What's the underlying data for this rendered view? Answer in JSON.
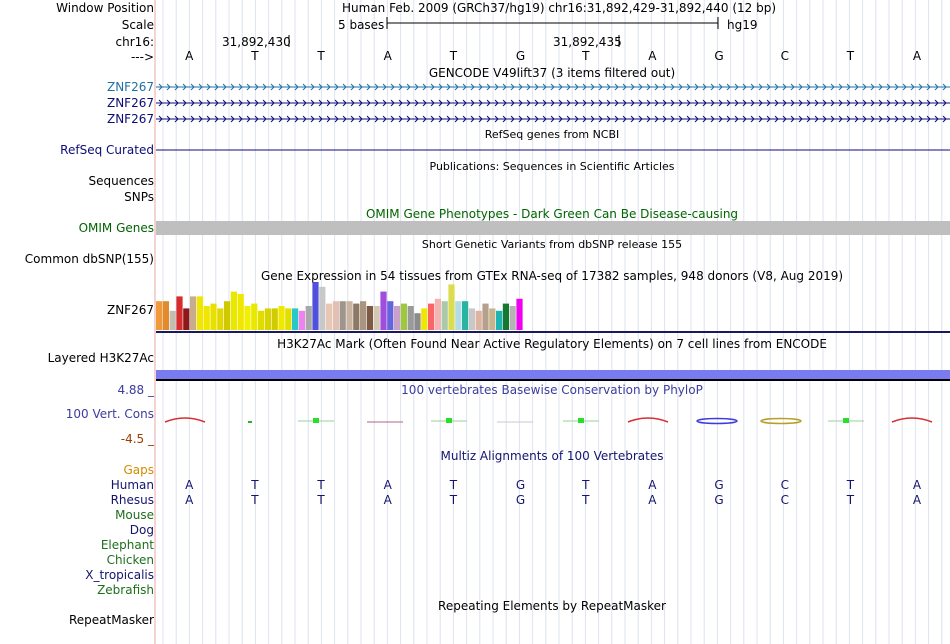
{
  "header": {
    "window_position_label": "Window Position",
    "scale_label": "Scale",
    "chrom_label": "chr16:",
    "strand_label": "--->",
    "assembly_text": "Human Feb. 2009 (GRCh37/hg19)   chr16:31,892,429-31,892,440 (12 bp)",
    "scale_text": "5 bases",
    "scale_db": "hg19",
    "coord_1": "31,892,430",
    "coord_2": "31,892,435",
    "bases": [
      "A",
      "T",
      "T",
      "A",
      "T",
      "G",
      "T",
      "A",
      "G",
      "C",
      "T",
      "A"
    ]
  },
  "tracks": {
    "gencode_title": "GENCODE V49lift37 (3 items filtered out)",
    "gencode_items": [
      "ZNF267",
      "ZNF267",
      "ZNF267"
    ],
    "refseq_title": "RefSeq genes from NCBI",
    "refseq_label": "RefSeq Curated",
    "pubs_title": "Publications: Sequences in Scientific Articles",
    "pubs_label_1": "Sequences",
    "pubs_label_2": "SNPs",
    "omim_title": "OMIM Gene Phenotypes - Dark Green Can Be Disease-causing",
    "omim_label": "OMIM Genes",
    "dbsnp_title": "Short Genetic Variants from dbSNP release 155",
    "dbsnp_label": "Common dbSNP(155)",
    "gtex_title": "Gene Expression in 54 tissues from GTEx RNA-seq of 17382 samples, 948 donors (V8, Aug 2019)",
    "gtex_label": "ZNF267",
    "h3k27_title": "H3K27Ac Mark (Often Found Near Active Regulatory Elements) on 7 cell lines from ENCODE",
    "h3k27_label": "Layered H3K27Ac",
    "phylop_title": "100 vertebrates Basewise Conservation by PhyloP",
    "phylop_max": "4.88 _",
    "phylop_label": "100 Vert. Cons",
    "phylop_min": "-4.5 _",
    "multiz_title": "Multiz Alignments of 100 Vertebrates",
    "multiz_gaps": "Gaps",
    "multiz_species": [
      "Human",
      "Rhesus",
      "Mouse",
      "Dog",
      "Elephant",
      "Chicken",
      "X_tropicalis",
      "Zebrafish"
    ],
    "human_seq": [
      "A",
      "T",
      "T",
      "A",
      "T",
      "G",
      "T",
      "A",
      "G",
      "C",
      "T",
      "A"
    ],
    "rhesus_seq": [
      "A",
      "T",
      "T",
      "A",
      "T",
      "G",
      "T",
      "A",
      "G",
      "C",
      "T",
      "A"
    ],
    "rmsk_title": "Repeating Elements by RepeatMasker",
    "rmsk_label": "RepeatMasker"
  },
  "colors": {
    "gencode_blue": "#1f6fa8",
    "gencode_dark": "#0c0c78",
    "refseq": "#0c0c78",
    "omim_green": "#006400",
    "omim_bar": "#bfbfbf",
    "phylop_blue": "#3c3ca0",
    "phylop_neg": "#a03c00",
    "gaps": "#d68a00",
    "species_navy": "#14146e",
    "species_green": "#1e6e1e",
    "h3k27": "#7b7bf0"
  },
  "chart_data": {
    "type": "bar",
    "title": "Gene Expression in 54 tissues from GTEx RNA-seq of 17382 samples, 948 donors (V8, Aug 2019)",
    "ylabel": "",
    "ylim": [
      0,
      1
    ],
    "values": [
      0.6,
      0.6,
      0.4,
      0.7,
      0.45,
      0.7,
      0.7,
      0.5,
      0.55,
      0.45,
      0.6,
      0.8,
      0.75,
      0.5,
      0.55,
      0.4,
      0.45,
      0.45,
      0.5,
      0.45,
      0.45,
      0.4,
      0.5,
      1.0,
      0.9,
      0.55,
      0.6,
      0.6,
      0.6,
      0.55,
      0.6,
      0.5,
      0.5,
      0.8,
      0.6,
      0.5,
      0.55,
      0.5,
      0.35,
      0.45,
      0.55,
      0.65,
      0.6,
      0.95,
      0.6,
      0.6,
      0.45,
      0.4,
      0.55,
      0.45,
      0.4,
      0.55,
      0.5,
      0.65
    ],
    "colors": [
      "#f09a3c",
      "#e38a2a",
      "#c4bdb0",
      "#d62c2c",
      "#8c1818",
      "#c8ad8c",
      "#f0e600",
      "#f0e600",
      "#e8e000",
      "#e0d800",
      "#d0c800",
      "#e8e800",
      "#f0e600",
      "#f0f000",
      "#e8e800",
      "#e0dc00",
      "#d8d400",
      "#d0cc00",
      "#f0e800",
      "#e0e000",
      "#28c8c8",
      "#ee82ee",
      "#a8a8a8",
      "#5050dc",
      "#c8c8c8",
      "#e6c8b4",
      "#e2c0b4",
      "#a0958c",
      "#c8b4a0",
      "#8c7864",
      "#aa9680",
      "#7d5a46",
      "#d2c8b4",
      "#a04cdc",
      "#6464dc",
      "#c8a0c8",
      "#a0c83c",
      "#9a9a9a",
      "#8c8c8c",
      "#f0e600",
      "#fa6464",
      "#f4b4b4",
      "#aac8aa",
      "#dcdc50",
      "#b4dce6",
      "#28b4a0",
      "#c8c8c8",
      "#dcb4a0",
      "#b4a08c",
      "#c8b48c",
      "#1eb4b4",
      "#147832",
      "#b4b4b4",
      "#f000f0"
    ]
  }
}
